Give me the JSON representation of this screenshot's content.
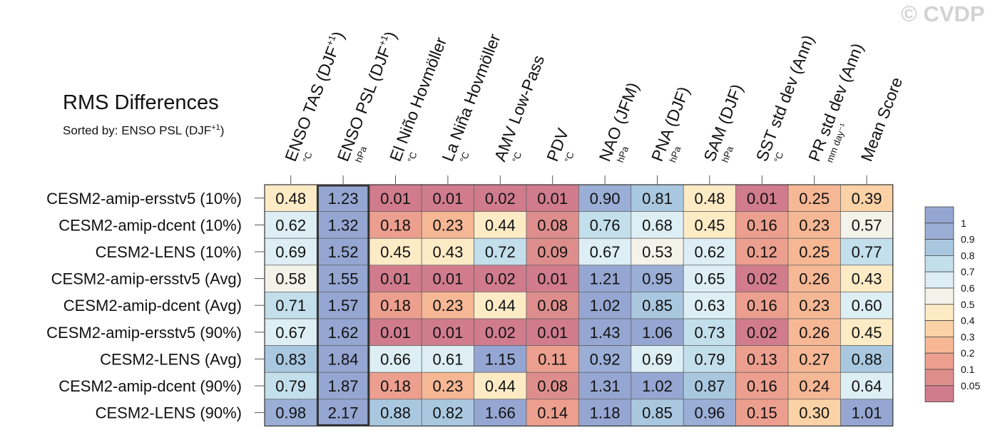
{
  "watermark": "© CVDP",
  "title": "RMS Differences",
  "subtitle": {
    "prefix": "Sorted by: ENSO PSL (DJF",
    "sup": "+1",
    "suffix": ")"
  },
  "chart_data": {
    "type": "heatmap",
    "title": "RMS Differences",
    "columns": [
      {
        "label": "ENSO TAS (DJF",
        "sup": "+1",
        "tail": ")",
        "unit": "°C"
      },
      {
        "label": "ENSO PSL (DJF",
        "sup": "+1",
        "tail": ")",
        "unit": "hPa"
      },
      {
        "label": "El Niño Hovmöller",
        "sup": "",
        "tail": "",
        "unit": "°C"
      },
      {
        "label": "La Niña Hovmöller",
        "sup": "",
        "tail": "",
        "unit": "°C"
      },
      {
        "label": "AMV Low-Pass",
        "sup": "",
        "tail": "",
        "unit": "°C"
      },
      {
        "label": "PDV",
        "sup": "",
        "tail": "",
        "unit": "°C"
      },
      {
        "label": "NAO (JFM)",
        "sup": "",
        "tail": "",
        "unit": "hPa"
      },
      {
        "label": "PNA (DJF)",
        "sup": "",
        "tail": "",
        "unit": "hPa"
      },
      {
        "label": "SAM (DJF)",
        "sup": "",
        "tail": "",
        "unit": "hPa"
      },
      {
        "label": "SST std dev (Ann)",
        "sup": "",
        "tail": "",
        "unit": "°C"
      },
      {
        "label": "PR std dev (Ann)",
        "sup": "",
        "tail": "",
        "unit": "mm day⁻¹"
      },
      {
        "label": "Mean Score",
        "sup": "",
        "tail": "",
        "unit": ""
      }
    ],
    "rows": [
      "CESM2-amip-ersstv5 (10%)",
      "CESM2-amip-dcent (10%)",
      "CESM2-LENS (10%)",
      "CESM2-amip-ersstv5 (Avg)",
      "CESM2-amip-dcent (Avg)",
      "CESM2-amip-ersstv5 (90%)",
      "CESM2-LENS (Avg)",
      "CESM2-amip-dcent (90%)",
      "CESM2-LENS (90%)"
    ],
    "values": [
      [
        0.48,
        1.23,
        0.01,
        0.01,
        0.02,
        0.01,
        0.9,
        0.81,
        0.48,
        0.01,
        0.25,
        0.39
      ],
      [
        0.62,
        1.32,
        0.18,
        0.23,
        0.44,
        0.08,
        0.76,
        0.68,
        0.45,
        0.16,
        0.23,
        0.57
      ],
      [
        0.69,
        1.52,
        0.45,
        0.43,
        0.72,
        0.09,
        0.67,
        0.53,
        0.62,
        0.12,
        0.25,
        0.77
      ],
      [
        0.58,
        1.55,
        0.01,
        0.01,
        0.02,
        0.01,
        1.21,
        0.95,
        0.65,
        0.02,
        0.26,
        0.43
      ],
      [
        0.71,
        1.57,
        0.18,
        0.23,
        0.44,
        0.08,
        1.02,
        0.85,
        0.63,
        0.16,
        0.23,
        0.6
      ],
      [
        0.67,
        1.62,
        0.01,
        0.01,
        0.02,
        0.01,
        1.43,
        1.06,
        0.73,
        0.02,
        0.26,
        0.45
      ],
      [
        0.83,
        1.84,
        0.66,
        0.61,
        1.15,
        0.11,
        0.92,
        0.69,
        0.79,
        0.13,
        0.27,
        0.88
      ],
      [
        0.79,
        1.87,
        0.18,
        0.23,
        0.44,
        0.08,
        1.31,
        1.02,
        0.87,
        0.16,
        0.24,
        0.64
      ],
      [
        0.98,
        2.17,
        0.88,
        0.82,
        1.66,
        0.14,
        1.18,
        0.85,
        0.96,
        0.15,
        0.3,
        1.01
      ]
    ],
    "highlighted_column": "ENSO PSL (DJF+1)",
    "color_levels": [
      0.05,
      0.1,
      0.2,
      0.3,
      0.4,
      0.5,
      0.6,
      0.7,
      0.8,
      0.9,
      1
    ],
    "color_labels": [
      "1",
      "0.9",
      "0.8",
      "0.7",
      "0.6",
      "0.5",
      "0.4",
      "0.3",
      "0.2",
      "0.1",
      "0.05"
    ],
    "colors": [
      "#d07c8d",
      "#dd8e8c",
      "#ec9f8e",
      "#f6b795",
      "#fbd1a6",
      "#fdebc6",
      "#f3f3ea",
      "#ddeef4",
      "#c3dfeb",
      "#a9c8e0",
      "#9aaed6",
      "#95a6d2"
    ]
  }
}
